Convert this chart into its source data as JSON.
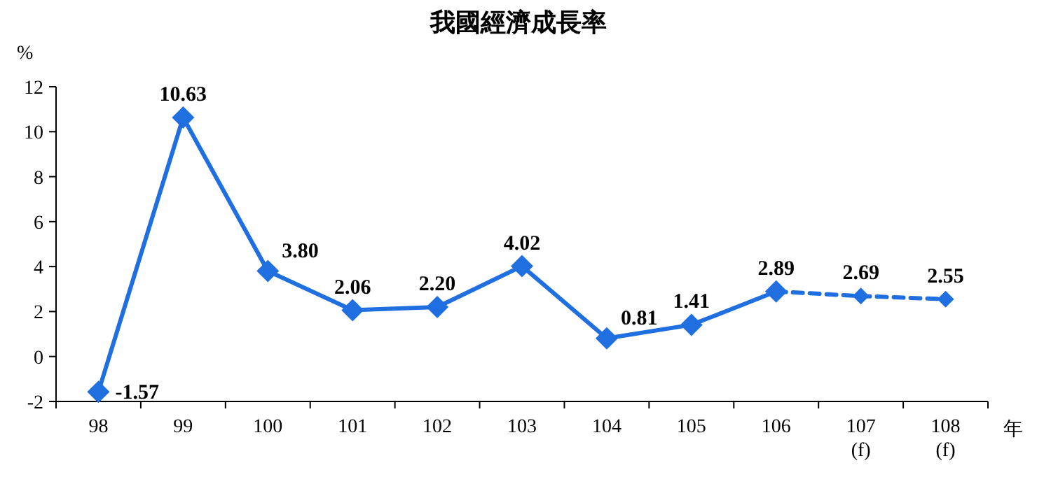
{
  "chart_data": {
    "type": "line",
    "title": "我國經濟成長率",
    "xlabel": "年",
    "ylabel": "%",
    "categories": [
      "98",
      "99",
      "100",
      "101",
      "102",
      "103",
      "104",
      "105",
      "106",
      "107\n(f)",
      "108\n(f)"
    ],
    "series": [
      {
        "color": "#1f6fe0",
        "line_style": "solid",
        "values": [
          -1.57,
          10.63,
          3.8,
          2.06,
          2.2,
          4.02,
          0.81,
          1.41,
          2.89,
          null,
          null
        ],
        "value_labels": [
          "-1.57",
          "10.63",
          "3.80",
          "2.06",
          "2.20",
          "4.02",
          "0.81",
          "1.41",
          "2.89",
          null,
          null
        ]
      },
      {
        "color": "#1f6fe0",
        "line_style": "dashed",
        "values": [
          null,
          null,
          null,
          null,
          null,
          null,
          null,
          null,
          2.89,
          2.69,
          2.55
        ],
        "value_labels": [
          null,
          null,
          null,
          null,
          null,
          null,
          null,
          null,
          null,
          "2.69",
          "2.55"
        ]
      }
    ],
    "ylim": [
      -2,
      12
    ],
    "yticks": [
      -2,
      0,
      2,
      4,
      6,
      8,
      10,
      12
    ],
    "marker": "diamond"
  }
}
